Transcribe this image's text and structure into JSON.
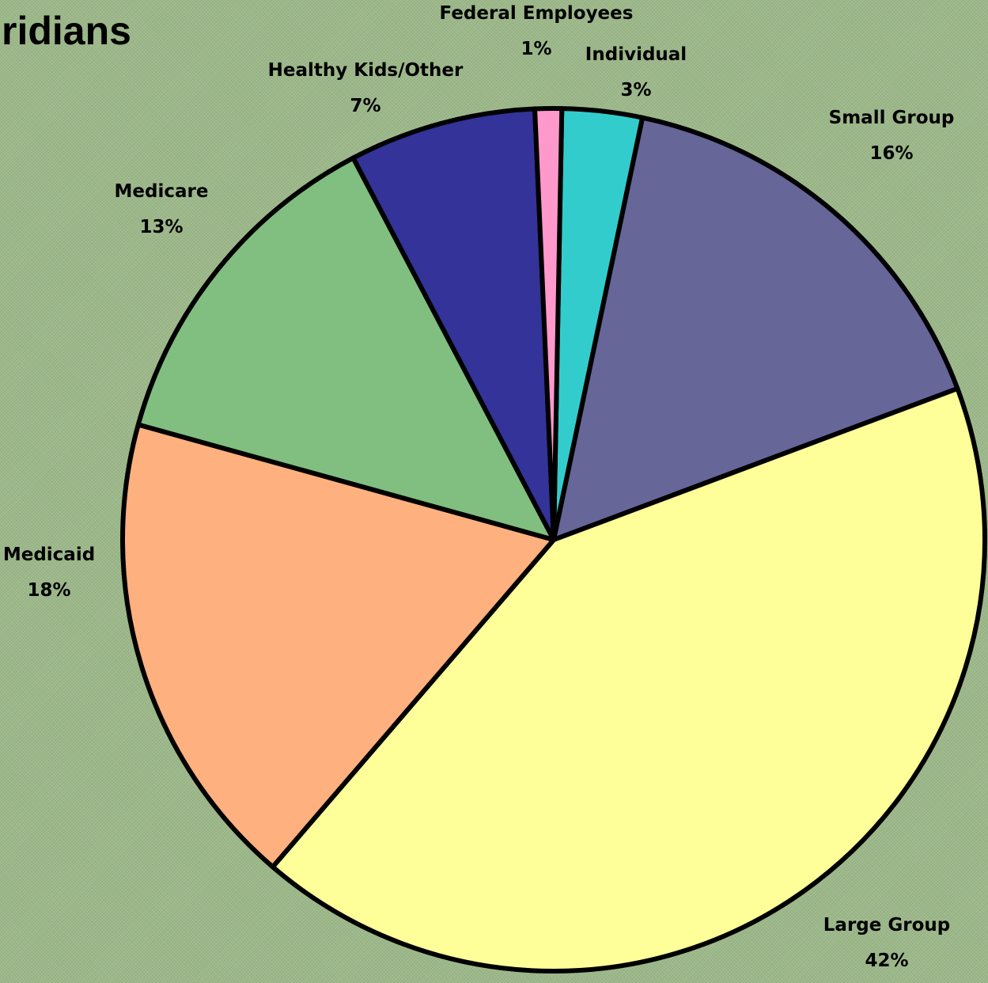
{
  "chart_data": {
    "type": "pie",
    "title": "ridians",
    "slices": [
      {
        "label": "Individual",
        "percent_label": "3%",
        "value": 3,
        "color": "#33cccc"
      },
      {
        "label": "Small Group",
        "percent_label": "16%",
        "value": 16,
        "color": "#666699"
      },
      {
        "label": "Large Group",
        "percent_label": "42%",
        "value": 42,
        "color": "#ffff99"
      },
      {
        "label": "Medicaid",
        "percent_label": "18%",
        "value": 18,
        "color": "#ffb07f"
      },
      {
        "label": "Medicare",
        "percent_label": "13%",
        "value": 13,
        "color": "#81bf81"
      },
      {
        "label": "Healthy Kids/Other",
        "percent_label": "7%",
        "value": 7,
        "color": "#333399"
      },
      {
        "label": "Federal Employees",
        "percent_label": "1%",
        "value": 1,
        "color": "#ff99cc"
      }
    ],
    "legend": "none",
    "data_labels": "outside"
  }
}
